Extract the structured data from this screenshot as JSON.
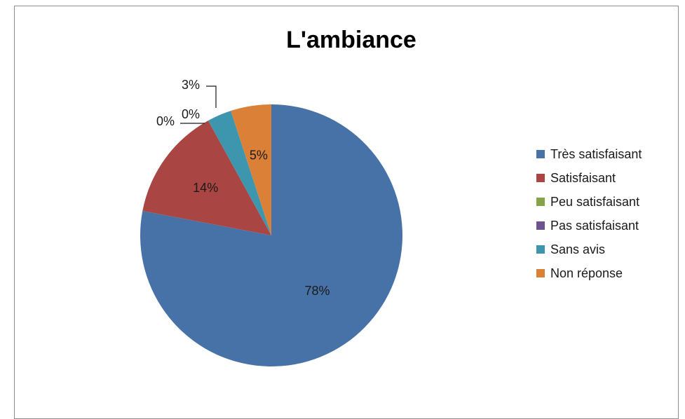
{
  "chart_data": {
    "type": "pie",
    "title": "L'ambiance",
    "categories": [
      "Très satisfaisant",
      "Satisfaisant",
      "Peu satisfaisant",
      "Pas satisfaisant",
      "Sans avis",
      "Non réponse"
    ],
    "values": [
      78,
      14,
      0,
      0,
      3,
      5
    ],
    "labels": [
      "78%",
      "14%",
      "0%",
      "0%",
      "3%",
      "5%"
    ],
    "colors": [
      "#4672a8",
      "#a94543",
      "#87a34a",
      "#6e548d",
      "#3d96ae",
      "#da8137"
    ],
    "legend": "right"
  }
}
